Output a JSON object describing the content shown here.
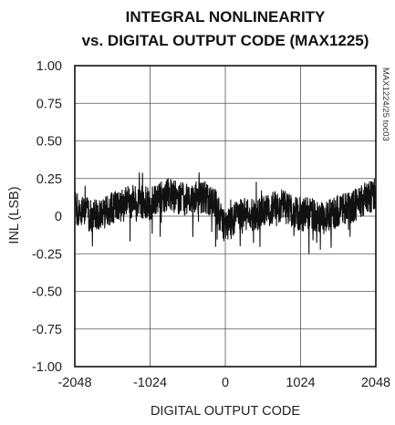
{
  "chart_data": {
    "type": "line",
    "title_line1": "INTEGRAL NONLINEARITY",
    "title_line2": "vs. DIGITAL OUTPUT CODE (MAX1225)",
    "xlabel": "DIGITAL OUTPUT CODE",
    "ylabel": "INL (LSB)",
    "figure_id": "MAX1224/25 toc03",
    "xlim": [
      -2048,
      2048
    ],
    "ylim": [
      -1.0,
      1.0
    ],
    "x_ticks": [
      -2048,
      -1024,
      0,
      1024,
      2048
    ],
    "x_tick_labels": [
      "-2048",
      "-1024",
      "0",
      "1024",
      "2048"
    ],
    "y_ticks": [
      1.0,
      0.75,
      0.5,
      0.25,
      0,
      -0.25,
      -0.5,
      -0.75,
      -1.0
    ],
    "y_tick_labels": [
      "1.00",
      "0.75",
      "0.50",
      "0.25",
      "0",
      "-0.25",
      "-0.50",
      "-0.75",
      "-1.00"
    ],
    "grid": true,
    "line_color": "#111111",
    "series": [
      {
        "x": [
          -2048,
          -1920,
          -1792,
          -1664,
          -1536,
          -1408,
          -1280,
          -1152,
          -1024,
          -896,
          -768,
          -640,
          -512,
          -384,
          -256,
          -128,
          0,
          128,
          256,
          384,
          512,
          640,
          768,
          896,
          1024,
          1152,
          1280,
          1408,
          1536,
          1664,
          1792,
          1920,
          2048
        ],
        "y": [
          0.05,
          0.02,
          0.0,
          0.02,
          0.05,
          0.07,
          0.1,
          0.1,
          0.08,
          0.12,
          0.15,
          0.12,
          0.1,
          0.12,
          0.12,
          0.08,
          -0.08,
          -0.02,
          0.02,
          0.0,
          0.03,
          0.05,
          0.07,
          0.03,
          0.0,
          0.03,
          -0.02,
          0.0,
          0.03,
          0.05,
          0.08,
          0.12,
          0.15
        ],
        "noise_amplitude": 0.11
      }
    ]
  }
}
